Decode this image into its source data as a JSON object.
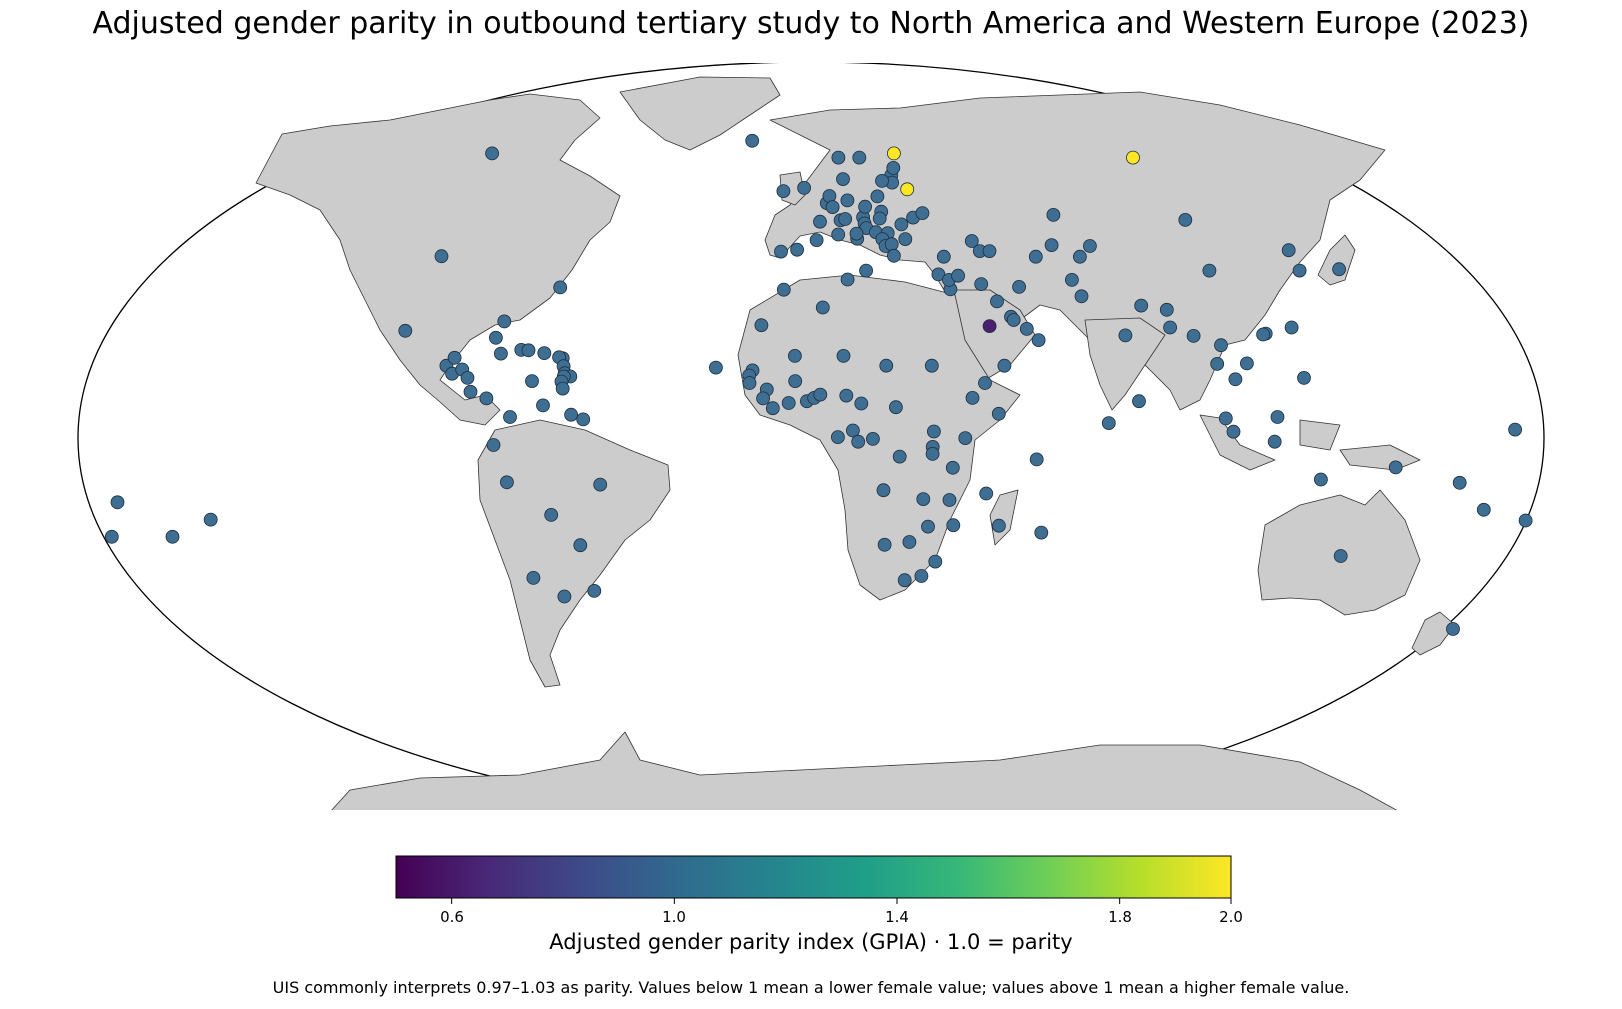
{
  "title": "Adjusted gender parity in outbound tertiary study to North America and Western Europe (2023)",
  "colorbar": {
    "label": "Adjusted gender parity index (GPIA) · 1.0 = parity",
    "min": 0.5,
    "max": 2.0,
    "colormap": "viridis",
    "ticks": [
      "0.6",
      "1.0",
      "1.4",
      "1.8",
      "2.0"
    ]
  },
  "footnote": "UIS commonly interprets 0.97–1.03 as parity. Values below 1 mean a lower female value; values above 1 mean a higher female value.",
  "colors": {
    "land": "#cccccc",
    "border": "#333333",
    "ocean": "#ffffff",
    "typical_marker": "#3e6e92",
    "high_marker": "#fde725",
    "low_marker": "#4b1f6f"
  },
  "markers": [
    {
      "lon": -100,
      "lat": 62,
      "v": 1.0
    },
    {
      "lon": -98,
      "lat": 39,
      "v": 1.0
    },
    {
      "lon": -102,
      "lat": 23,
      "v": 1.0
    },
    {
      "lon": -64.7,
      "lat": 32.3,
      "v": 1.0
    },
    {
      "lon": -90.5,
      "lat": 15.5,
      "v": 1.0
    },
    {
      "lon": -88.7,
      "lat": 17.2,
      "v": 1.0
    },
    {
      "lon": -88.9,
      "lat": 13.8,
      "v": 1.0
    },
    {
      "lon": -86.5,
      "lat": 14.7,
      "v": 1.0
    },
    {
      "lon": -85,
      "lat": 12.9,
      "v": 1.0
    },
    {
      "lon": -84,
      "lat": 9.9,
      "v": 1.0
    },
    {
      "lon": -80,
      "lat": 8.5,
      "v": 1.0
    },
    {
      "lon": -79,
      "lat": 21.5,
      "v": 1.0
    },
    {
      "lon": -77.3,
      "lat": 18.1,
      "v": 1.0
    },
    {
      "lon": -72.3,
      "lat": 18.9,
      "v": 1.0
    },
    {
      "lon": -70.5,
      "lat": 18.8,
      "v": 1.0
    },
    {
      "lon": -77.4,
      "lat": 25.0,
      "v": 1.0
    },
    {
      "lon": -66.5,
      "lat": 18.2,
      "v": 1.0
    },
    {
      "lon": -61.8,
      "lat": 17.1,
      "v": 1.0
    },
    {
      "lon": -62.7,
      "lat": 17.3,
      "v": 1.0
    },
    {
      "lon": -61.4,
      "lat": 15.4,
      "v": 1.0
    },
    {
      "lon": -61.0,
      "lat": 13.9,
      "v": 1.0
    },
    {
      "lon": -59.6,
      "lat": 13.2,
      "v": 1.0
    },
    {
      "lon": -61.2,
      "lat": 13.2,
      "v": 1.0
    },
    {
      "lon": -61.7,
      "lat": 12.1,
      "v": 1.0
    },
    {
      "lon": -61.3,
      "lat": 10.6,
      "v": 1.0
    },
    {
      "lon": -69,
      "lat": 12.2,
      "v": 1.0
    },
    {
      "lon": -74,
      "lat": 4.5,
      "v": 1.0
    },
    {
      "lon": -66,
      "lat": 7,
      "v": 1.0
    },
    {
      "lon": -59,
      "lat": 5,
      "v": 1.0
    },
    {
      "lon": -56,
      "lat": 4,
      "v": 1.0
    },
    {
      "lon": -78,
      "lat": -1.5,
      "v": 1.0
    },
    {
      "lon": -75,
      "lat": -9.5,
      "v": 1.0
    },
    {
      "lon": -52,
      "lat": -10,
      "v": 1.0
    },
    {
      "lon": -64.6,
      "lat": -16.5,
      "v": 1.0
    },
    {
      "lon": -58,
      "lat": -23,
      "v": 1.0
    },
    {
      "lon": -71,
      "lat": -30,
      "v": 1.0
    },
    {
      "lon": -64,
      "lat": -34,
      "v": 1.0
    },
    {
      "lon": -56,
      "lat": -32.8,
      "v": 1.0
    },
    {
      "lon": -149.5,
      "lat": -17.5,
      "v": 1.0
    },
    {
      "lon": -160,
      "lat": -21.2,
      "v": 1.0
    },
    {
      "lon": -171.8,
      "lat": -13.8,
      "v": 1.0
    },
    {
      "lon": -23.6,
      "lat": 15.1,
      "v": 1.0
    },
    {
      "lon": -19,
      "lat": 65,
      "v": 1.0
    },
    {
      "lon": -8,
      "lat": 53.3,
      "v": 1.0
    },
    {
      "lon": -2,
      "lat": 54,
      "v": 1.0
    },
    {
      "lon": -8,
      "lat": 40,
      "v": 1.0
    },
    {
      "lon": -3.7,
      "lat": 40.4,
      "v": 1.0
    },
    {
      "lon": 2.5,
      "lat": 46.5,
      "v": 1.0
    },
    {
      "lon": 4.5,
      "lat": 50.6,
      "v": 1.0
    },
    {
      "lon": 5.3,
      "lat": 52.2,
      "v": 1.0
    },
    {
      "lon": 6.1,
      "lat": 49.7,
      "v": 1.0
    },
    {
      "lon": 10.4,
      "lat": 51.2,
      "v": 1.0
    },
    {
      "lon": 8.2,
      "lat": 46.8,
      "v": 1.0
    },
    {
      "lon": 9.5,
      "lat": 47.1,
      "v": 1.0
    },
    {
      "lon": 7.4,
      "lat": 43.7,
      "v": 1.0
    },
    {
      "lon": 12.5,
      "lat": 42.8,
      "v": 1.0
    },
    {
      "lon": 14.5,
      "lat": 47.5,
      "v": 1.0
    },
    {
      "lon": 15.3,
      "lat": 49.8,
      "v": 1.0
    },
    {
      "lon": 19.7,
      "lat": 48.7,
      "v": 1.0
    },
    {
      "lon": 19.1,
      "lat": 47.2,
      "v": 1.0
    },
    {
      "lon": 19.1,
      "lat": 52.1,
      "v": 1.0
    },
    {
      "lon": 14.8,
      "lat": 46.1,
      "v": 1.0
    },
    {
      "lon": 15.2,
      "lat": 45.1,
      "v": 1.0
    },
    {
      "lon": 17.7,
      "lat": 44.2,
      "v": 1.0
    },
    {
      "lon": 20.9,
      "lat": 44.0,
      "v": 1.0
    },
    {
      "lon": 19.3,
      "lat": 42.7,
      "v": 1.0
    },
    {
      "lon": 20.0,
      "lat": 41.2,
      "v": 1.0
    },
    {
      "lon": 21.7,
      "lat": 41.6,
      "v": 1.0
    },
    {
      "lon": 22,
      "lat": 39.1,
      "v": 1.0
    },
    {
      "lon": 25.5,
      "lat": 42.7,
      "v": 1.0
    },
    {
      "lon": 24.9,
      "lat": 45.9,
      "v": 1.0
    },
    {
      "lon": 28.4,
      "lat": 47.4,
      "v": 1.0
    },
    {
      "lon": 31.2,
      "lat": 48.4,
      "v": 1.0
    },
    {
      "lon": 14.4,
      "lat": 35.9,
      "v": 1.0
    },
    {
      "lon": 12.4,
      "lat": 43.9,
      "v": 1.0
    },
    {
      "lon": 1.5,
      "lat": 42.5,
      "v": 1.0
    },
    {
      "lon": 9.5,
      "lat": 56,
      "v": 1.0
    },
    {
      "lon": 8.5,
      "lat": 61,
      "v": 1.0
    },
    {
      "lon": 15,
      "lat": 61,
      "v": 1.0
    },
    {
      "lon": 24.0,
      "lat": 56.9,
      "v": 1.0
    },
    {
      "lon": 23.9,
      "lat": 55.2,
      "v": 1.0
    },
    {
      "lon": 25.0,
      "lat": 58.6,
      "v": 1.0
    },
    {
      "lon": 21.0,
      "lat": 55.6,
      "v": 1.0
    },
    {
      "lon": 26,
      "lat": 62,
      "v": 1.85
    },
    {
      "lon": 28,
      "lat": 53.7,
      "v": 1.85
    },
    {
      "lon": 100,
      "lat": 61,
      "v": 1.85
    },
    {
      "lon": 33.2,
      "lat": 35.1,
      "v": 1.0
    },
    {
      "lon": 35.9,
      "lat": 31.9,
      "v": 1.0
    },
    {
      "lon": 35.8,
      "lat": 33.9,
      "v": 1.0
    },
    {
      "lon": 38.3,
      "lat": 34.8,
      "v": 1.0
    },
    {
      "lon": 35.2,
      "lat": 38.9,
      "v": 1.0
    },
    {
      "lon": 43.4,
      "lat": 42.3,
      "v": 1.0
    },
    {
      "lon": 45,
      "lat": 40.1,
      "v": 1.0
    },
    {
      "lon": 47.6,
      "lat": 40.1,
      "v": 1.0
    },
    {
      "lon": 44,
      "lat": 33,
      "v": 1.0
    },
    {
      "lon": 53.7,
      "lat": 32.4,
      "v": 1.0
    },
    {
      "lon": 45,
      "lat": 24,
      "v": 0.5
    },
    {
      "lon": 47.5,
      "lat": 29.3,
      "v": 1.0
    },
    {
      "lon": 50.6,
      "lat": 26.0,
      "v": 1.0
    },
    {
      "lon": 51.2,
      "lat": 25.3,
      "v": 1.0
    },
    {
      "lon": 54.3,
      "lat": 23.4,
      "v": 1.0
    },
    {
      "lon": 57,
      "lat": 21,
      "v": 1.0
    },
    {
      "lon": 48,
      "lat": 15.5,
      "v": 1.0
    },
    {
      "lon": 67.7,
      "lat": 48.0,
      "v": 1.0
    },
    {
      "lon": 59.6,
      "lat": 38.9,
      "v": 1.0
    },
    {
      "lon": 64.6,
      "lat": 41.4,
      "v": 1.0
    },
    {
      "lon": 74.8,
      "lat": 41.2,
      "v": 1.0
    },
    {
      "lon": 71.3,
      "lat": 38.9,
      "v": 1.0
    },
    {
      "lon": 67.7,
      "lat": 33.9,
      "v": 1.0
    },
    {
      "lon": 69.3,
      "lat": 30.4,
      "v": 1.0
    },
    {
      "lon": 78.9,
      "lat": 22.0,
      "v": 1.0
    },
    {
      "lon": 84.1,
      "lat": 28.4,
      "v": 1.0
    },
    {
      "lon": 90.4,
      "lat": 27.5,
      "v": 1.0
    },
    {
      "lon": 90.4,
      "lat": 23.7,
      "v": 1.0
    },
    {
      "lon": 80.8,
      "lat": 7.9,
      "v": 1.0
    },
    {
      "lon": 73.2,
      "lat": 3.2,
      "v": 1.0
    },
    {
      "lon": 103.8,
      "lat": 46.9,
      "v": 1.0
    },
    {
      "lon": 104.2,
      "lat": 35.9,
      "v": 1.0
    },
    {
      "lon": 114.2,
      "lat": 22.4,
      "v": 1.0
    },
    {
      "lon": 113.5,
      "lat": 22.2,
      "v": 1.0
    },
    {
      "lon": 121,
      "lat": 23.7,
      "v": 1.0
    },
    {
      "lon": 127.5,
      "lat": 40.3,
      "v": 1.0
    },
    {
      "lon": 127.8,
      "lat": 35.9,
      "v": 1.0
    },
    {
      "lon": 138.3,
      "lat": 36.2,
      "v": 1.0
    },
    {
      "lon": 96,
      "lat": 21.9,
      "v": 1.0
    },
    {
      "lon": 100.9,
      "lat": 15.9,
      "v": 1.0
    },
    {
      "lon": 102.5,
      "lat": 19.9,
      "v": 1.0
    },
    {
      "lon": 105,
      "lat": 12.6,
      "v": 1.0
    },
    {
      "lon": 108.3,
      "lat": 16.0,
      "v": 1.0
    },
    {
      "lon": 122,
      "lat": 12.9,
      "v": 1.0
    },
    {
      "lon": 101.98,
      "lat": 4.2,
      "v": 1.0
    },
    {
      "lon": 103.8,
      "lat": 1.35,
      "v": 1.0
    },
    {
      "lon": 114.7,
      "lat": 4.5,
      "v": 1.0
    },
    {
      "lon": 113.9,
      "lat": -0.8,
      "v": 1.0
    },
    {
      "lon": 125.7,
      "lat": -8.9,
      "v": 1.0
    },
    {
      "lon": 143.9,
      "lat": -6.3,
      "v": 1.0
    },
    {
      "lon": 160,
      "lat": -9.6,
      "v": 1.0
    },
    {
      "lon": 167,
      "lat": -15.4,
      "v": 1.0
    },
    {
      "lon": 178,
      "lat": -17.7,
      "v": 1.0
    },
    {
      "lon": 173,
      "lat": 1.8,
      "v": 1.0
    },
    {
      "lon": 133.8,
      "lat": -25.3,
      "v": 1.0
    },
    {
      "lon": 172,
      "lat": -41,
      "v": 1.0
    },
    {
      "lon": -175.2,
      "lat": -21.2,
      "v": 1.0
    },
    {
      "lon": -7,
      "lat": 31.8,
      "v": 1.0
    },
    {
      "lon": 3,
      "lat": 28,
      "v": 1.0
    },
    {
      "lon": 9.5,
      "lat": 34,
      "v": 1.0
    },
    {
      "lon": -12.5,
      "lat": 24.2,
      "v": 1.0
    },
    {
      "lon": -14.5,
      "lat": 14.5,
      "v": 1.0
    },
    {
      "lon": -15.3,
      "lat": 13.4,
      "v": 1.0
    },
    {
      "lon": -15.2,
      "lat": 11.8,
      "v": 1.0
    },
    {
      "lon": -10.9,
      "lat": 10.4,
      "v": 1.0
    },
    {
      "lon": -11.8,
      "lat": 8.5,
      "v": 1.0
    },
    {
      "lon": -9.4,
      "lat": 6.4,
      "v": 1.0
    },
    {
      "lon": -5.5,
      "lat": 7.5,
      "v": 1.0
    },
    {
      "lon": -1.0,
      "lat": 7.9,
      "v": 1.0
    },
    {
      "lon": 0.8,
      "lat": 8.6,
      "v": 1.0
    },
    {
      "lon": 2.3,
      "lat": 9.3,
      "v": 1.0
    },
    {
      "lon": -3.9,
      "lat": 12.2,
      "v": 1.0
    },
    {
      "lon": -4,
      "lat": 17.6,
      "v": 1.0
    },
    {
      "lon": 8.1,
      "lat": 17.6,
      "v": 1.0
    },
    {
      "lon": 8.7,
      "lat": 9.1,
      "v": 1.0
    },
    {
      "lon": 18.7,
      "lat": 15.5,
      "v": 1.0
    },
    {
      "lon": 30,
      "lat": 15.5,
      "v": 1.0
    },
    {
      "lon": 12.4,
      "lat": 7.4,
      "v": 1.0
    },
    {
      "lon": 20.9,
      "lat": 6.6,
      "v": 1.0
    },
    {
      "lon": 10.3,
      "lat": 1.6,
      "v": 1.0
    },
    {
      "lon": 11.6,
      "lat": -0.8,
      "v": 1.0
    },
    {
      "lon": 15.2,
      "lat": -0.2,
      "v": 1.0
    },
    {
      "lon": 6.6,
      "lat": 0.2,
      "v": 1.0
    },
    {
      "lon": 21.8,
      "lat": -4.0,
      "v": 1.0
    },
    {
      "lon": 30.2,
      "lat": 1.4,
      "v": 1.0
    },
    {
      "lon": 37.9,
      "lat": -0.02,
      "v": 1.0
    },
    {
      "lon": 39.8,
      "lat": 8.6,
      "v": 1.0
    },
    {
      "lon": 46.2,
      "lat": 5.2,
      "v": 1.0
    },
    {
      "lon": 43,
      "lat": 11.8,
      "v": 1.0
    },
    {
      "lon": 29.9,
      "lat": -1.9,
      "v": 1.0
    },
    {
      "lon": 29.9,
      "lat": -3.4,
      "v": 1.0
    },
    {
      "lon": 34.9,
      "lat": -6.4,
      "v": 1.0
    },
    {
      "lon": 17.9,
      "lat": -11.2,
      "v": 1.0
    },
    {
      "lon": 27.8,
      "lat": -13.1,
      "v": 1.0
    },
    {
      "lon": 34.3,
      "lat": -13.3,
      "v": 1.0
    },
    {
      "lon": 35.5,
      "lat": -18.7,
      "v": 1.0
    },
    {
      "lon": 29.2,
      "lat": -19.0,
      "v": 1.0
    },
    {
      "lon": 18.5,
      "lat": -22.9,
      "v": 1.0
    },
    {
      "lon": 24.7,
      "lat": -22.3,
      "v": 1.0
    },
    {
      "lon": 31.5,
      "lat": -26.5,
      "v": 1.0
    },
    {
      "lon": 28.2,
      "lat": -29.6,
      "v": 1.0
    },
    {
      "lon": 24,
      "lat": -30.5,
      "v": 1.0
    },
    {
      "lon": 46.9,
      "lat": -18.8,
      "v": 1.0
    },
    {
      "lon": 43.3,
      "lat": -11.9,
      "v": 1.0
    },
    {
      "lon": 55.5,
      "lat": -4.6,
      "v": 1.0
    },
    {
      "lon": 57.6,
      "lat": -20.3,
      "v": 1.0
    }
  ]
}
